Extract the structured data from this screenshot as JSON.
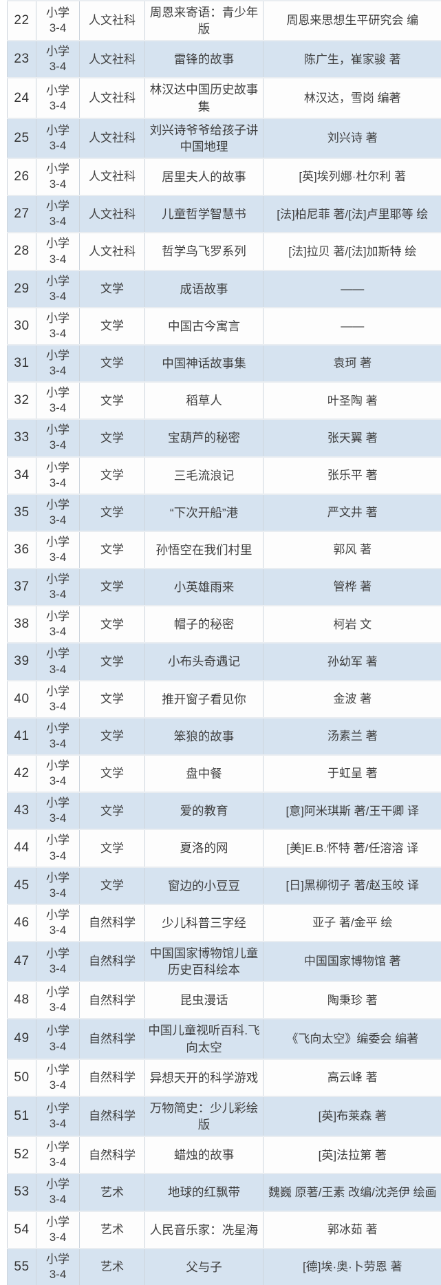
{
  "colors": {
    "row_alt": "#d6e3f0",
    "row_base": "#fdfdfd",
    "grid_line": "#ccd4dc",
    "text": "#3f3f3f"
  },
  "table": {
    "rows": [
      {
        "no": "22",
        "grade": "小学\n3-4",
        "category": "人文社科",
        "title": "周恩来寄语：青少年版",
        "author": "周恩来思想生平研究会 编"
      },
      {
        "no": "23",
        "grade": "小学\n3-4",
        "category": "人文社科",
        "title": "雷锋的故事",
        "author": "陈广生，崔家骏 著"
      },
      {
        "no": "24",
        "grade": "小学\n3-4",
        "category": "人文社科",
        "title": "林汉达中国历史故事集",
        "author": "林汉达，雪岗 编著"
      },
      {
        "no": "25",
        "grade": "小学\n3-4",
        "category": "人文社科",
        "title": "刘兴诗爷爷给孩子讲中国地理",
        "author": "刘兴诗 著"
      },
      {
        "no": "26",
        "grade": "小学\n3-4",
        "category": "人文社科",
        "title": "居里夫人的故事",
        "author": "[英]埃列娜·杜尔利 著"
      },
      {
        "no": "27",
        "grade": "小学\n3-4",
        "category": "人文社科",
        "title": "儿童哲学智慧书",
        "author": "[法]柏尼菲 著/[法]卢里耶等 绘"
      },
      {
        "no": "28",
        "grade": "小学\n3-4",
        "category": "人文社科",
        "title": "哲学鸟飞罗系列",
        "author": "[法]拉贝 著/[法]加斯特 绘"
      },
      {
        "no": "29",
        "grade": "小学\n3-4",
        "category": "文学",
        "title": "成语故事",
        "author": "——"
      },
      {
        "no": "30",
        "grade": "小学\n3-4",
        "category": "文学",
        "title": "中国古今寓言",
        "author": "——"
      },
      {
        "no": "31",
        "grade": "小学\n3-4",
        "category": "文学",
        "title": "中国神话故事集",
        "author": "袁珂 著"
      },
      {
        "no": "32",
        "grade": "小学\n3-4",
        "category": "文学",
        "title": "稻草人",
        "author": "叶圣陶 著"
      },
      {
        "no": "33",
        "grade": "小学\n3-4",
        "category": "文学",
        "title": "宝葫芦的秘密",
        "author": "张天翼 著"
      },
      {
        "no": "34",
        "grade": "小学\n3-4",
        "category": "文学",
        "title": "三毛流浪记",
        "author": "张乐平 著"
      },
      {
        "no": "35",
        "grade": "小学\n3-4",
        "category": "文学",
        "title": "“下次开船”港",
        "author": "严文井 著"
      },
      {
        "no": "36",
        "grade": "小学\n3-4",
        "category": "文学",
        "title": "孙悟空在我们村里",
        "author": "郭风 著"
      },
      {
        "no": "37",
        "grade": "小学\n3-4",
        "category": "文学",
        "title": "小英雄雨来",
        "author": "管桦 著"
      },
      {
        "no": "38",
        "grade": "小学\n3-4",
        "category": "文学",
        "title": "帽子的秘密",
        "author": "柯岩 文"
      },
      {
        "no": "39",
        "grade": "小学\n3-4",
        "category": "文学",
        "title": "小布头奇遇记",
        "author": "孙幼军 著"
      },
      {
        "no": "40",
        "grade": "小学\n3-4",
        "category": "文学",
        "title": "推开窗子看见你",
        "author": "金波 著"
      },
      {
        "no": "41",
        "grade": "小学\n3-4",
        "category": "文学",
        "title": "笨狼的故事",
        "author": "汤素兰 著"
      },
      {
        "no": "42",
        "grade": "小学\n3-4",
        "category": "文学",
        "title": "盘中餐",
        "author": "于虹呈 著"
      },
      {
        "no": "43",
        "grade": "小学\n3-4",
        "category": "文学",
        "title": "爱的教育",
        "author": "[意]阿米琪斯 著/王干卿 译"
      },
      {
        "no": "44",
        "grade": "小学\n3-4",
        "category": "文学",
        "title": "夏洛的网",
        "author": "[美]E.B.怀特 著/任溶溶 译"
      },
      {
        "no": "45",
        "grade": "小学\n3-4",
        "category": "文学",
        "title": "窗边的小豆豆",
        "author": "[日]黑柳彻子 著/赵玉皎 译"
      },
      {
        "no": "46",
        "grade": "小学\n3-4",
        "category": "自然科学",
        "title": "少儿科普三字经",
        "author": "亚子 著/金平 绘"
      },
      {
        "no": "47",
        "grade": "小学\n3-4",
        "category": "自然科学",
        "title": "中国国家博物馆儿童历史百科绘本",
        "author": "中国国家博物馆 著"
      },
      {
        "no": "48",
        "grade": "小学\n3-4",
        "category": "自然科学",
        "title": "昆虫漫话",
        "author": "陶秉珍 著"
      },
      {
        "no": "49",
        "grade": "小学\n3-4",
        "category": "自然科学",
        "title": "中国儿童视听百科.飞向太空",
        "author": "《飞向太空》编委会 编著"
      },
      {
        "no": "50",
        "grade": "小学\n3-4",
        "category": "自然科学",
        "title": "异想天开的科学游戏",
        "author": "高云峰 著"
      },
      {
        "no": "51",
        "grade": "小学\n3-4",
        "category": "自然科学",
        "title": "万物简史：少儿彩绘版",
        "author": "[英]布莱森 著"
      },
      {
        "no": "52",
        "grade": "小学\n3-4",
        "category": "自然科学",
        "title": "蜡烛的故事",
        "author": "[英]法拉第 著"
      },
      {
        "no": "53",
        "grade": "小学\n3-4",
        "category": "艺术",
        "title": "地球的红飘带",
        "author": "魏巍 原著/王素 改编/沈尧伊 绘画"
      },
      {
        "no": "54",
        "grade": "小学\n3-4",
        "category": "艺术",
        "title": "人民音乐家：冼星海",
        "author": "郭冰茹 著"
      },
      {
        "no": "55",
        "grade": "小学\n3-4",
        "category": "艺术",
        "title": "父与子",
        "author": "[德]埃·奥·卜劳恩 著"
      }
    ]
  }
}
